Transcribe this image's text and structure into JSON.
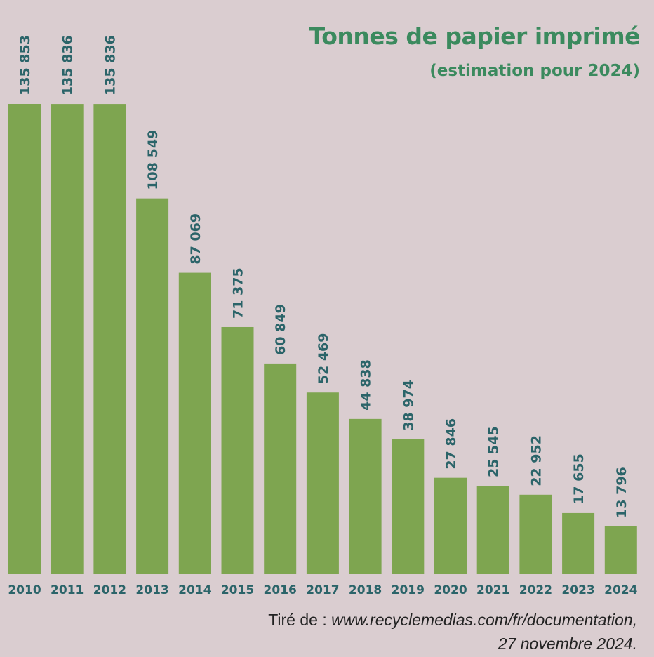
{
  "chart_data": {
    "type": "bar",
    "title": "Tonnes de papier imprimé",
    "subtitle": "(estimation pour 2024)",
    "xlabel": "",
    "ylabel": "",
    "categories": [
      "2010",
      "2011",
      "2012",
      "2013",
      "2014",
      "2015",
      "2016",
      "2017",
      "2018",
      "2019",
      "2020",
      "2021",
      "2022",
      "2023",
      "2024"
    ],
    "values": [
      135853,
      135836,
      135836,
      108549,
      87069,
      71375,
      60849,
      52469,
      44838,
      38974,
      27846,
      25545,
      22952,
      17655,
      13796
    ],
    "value_labels": [
      "135 853",
      "135 836",
      "135 836",
      "108 549",
      "87 069",
      "71 375",
      "60 849",
      "52 469",
      "44 838",
      "38 974",
      "27 846",
      "25 545",
      "22 952",
      "17 655",
      "13 796"
    ],
    "ylim": [
      0,
      136000
    ],
    "grid": false,
    "colors": {
      "bar": "#7ea550",
      "label": "#2b6469",
      "title": "#3b8a5e",
      "background": "#dacdd0"
    }
  },
  "source": {
    "prefix": "Tiré de : ",
    "url": "www.recyclemedias.com/fr/documentation,",
    "date": "27 novembre 2024."
  }
}
